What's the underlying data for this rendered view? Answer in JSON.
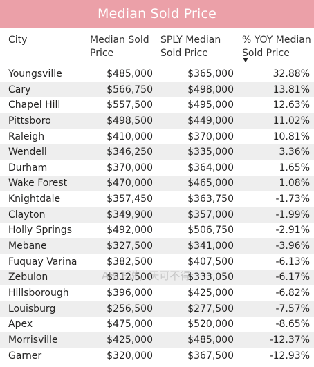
{
  "title": "Median Sold Price",
  "columns": {
    "city": "City",
    "median": "Median Sold Price",
    "sply": "SPLY Median Sold Price",
    "yoy": "% YOY Median Sold Price"
  },
  "sort": {
    "column": "% YOY Median Sold Price",
    "direction": "descending",
    "icon": "sort-down-icon"
  },
  "colors": {
    "title_bg": "#eba0a8",
    "band": "#eeeeee"
  },
  "rows": [
    {
      "city": "Youngsville",
      "median": "$485,000",
      "sply": "$365,000",
      "yoy": "32.88%"
    },
    {
      "city": "Cary",
      "median": "$566,750",
      "sply": "$498,000",
      "yoy": "13.81%"
    },
    {
      "city": "Chapel Hill",
      "median": "$557,500",
      "sply": "$495,000",
      "yoy": "12.63%"
    },
    {
      "city": "Pittsboro",
      "median": "$498,500",
      "sply": "$449,000",
      "yoy": "11.02%"
    },
    {
      "city": "Raleigh",
      "median": "$410,000",
      "sply": "$370,000",
      "yoy": "10.81%"
    },
    {
      "city": "Wendell",
      "median": "$346,250",
      "sply": "$335,000",
      "yoy": "3.36%"
    },
    {
      "city": "Durham",
      "median": "$370,000",
      "sply": "$364,000",
      "yoy": "1.65%"
    },
    {
      "city": "Wake Forest",
      "median": "$470,000",
      "sply": "$465,000",
      "yoy": "1.08%"
    },
    {
      "city": "Knightdale",
      "median": "$357,450",
      "sply": "$363,750",
      "yoy": "-1.73%"
    },
    {
      "city": "Clayton",
      "median": "$349,900",
      "sply": "$357,000",
      "yoy": "-1.99%"
    },
    {
      "city": "Holly Springs",
      "median": "$492,000",
      "sply": "$506,750",
      "yoy": "-2.91%"
    },
    {
      "city": "Mebane",
      "median": "$327,500",
      "sply": "$341,000",
      "yoy": "-3.96%"
    },
    {
      "city": "Fuquay Varina",
      "median": "$382,500",
      "sply": "$407,500",
      "yoy": "-6.13%"
    },
    {
      "city": "Zebulon",
      "median": "$312,500",
      "sply": "$333,050",
      "yoy": "-6.17%"
    },
    {
      "city": "Hillsborough",
      "median": "$396,000",
      "sply": "$425,000",
      "yoy": "-6.82%"
    },
    {
      "city": "Louisburg",
      "median": "$256,500",
      "sply": "$277,500",
      "yoy": "-7.57%"
    },
    {
      "city": "Apex",
      "median": "$475,000",
      "sply": "$520,000",
      "yoy": "-8.65%"
    },
    {
      "city": "Morrisville",
      "median": "$425,000",
      "sply": "$485,000",
      "yoy": "-12.37%"
    },
    {
      "city": "Garner",
      "median": "$320,000",
      "sply": "$367,500",
      "yoy": "-12.93%"
    }
  ],
  "watermark": "ABLE说，天可不得"
}
